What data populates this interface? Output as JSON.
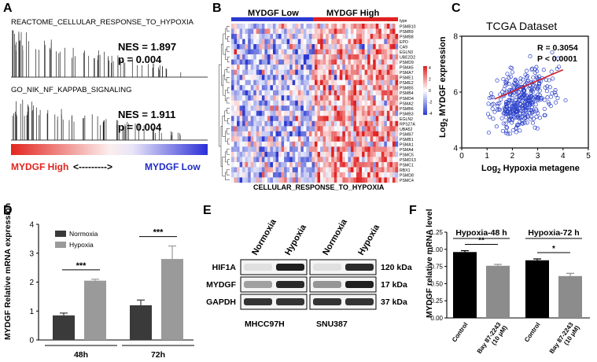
{
  "panels": {
    "A": {
      "label": "A",
      "gsea": [
        {
          "title": "REACTOME_CELLULAR_RESPONSE_TO_HYPOXIA",
          "nes": "NES = 1.897",
          "p": "p = 0.004"
        },
        {
          "title": "GO_NIK_NF_KAPPAB_SIGNALING",
          "nes": "NES = 1.911",
          "p": "p = 0.004"
        }
      ],
      "left_label": "MYDGF High",
      "arrow": "<--------->",
      "right_label": "MYDGF Low",
      "colors": {
        "high": "#e0231d",
        "low": "#1f2cc4"
      }
    },
    "B": {
      "label": "B",
      "group_low": "MYDGF Low",
      "group_high": "MYDGF High",
      "type_label": "type",
      "genes": [
        "PSMB10",
        "PSMB9",
        "PSMB8",
        "EPO",
        "CA9",
        "EGLN3",
        "UBE2D2",
        "PSMD9",
        "PSMA5",
        "PSMA7",
        "PSME1",
        "PSME2",
        "PSMB5",
        "PSMB4",
        "PSMD4",
        "PSMA2",
        "PSMB6",
        "PSMB3",
        "EGLN2",
        "RPS27A",
        "UBA52",
        "PSMB7",
        "PSMB1",
        "PSMA1",
        "PSMA4",
        "PSMC5",
        "PSMD13",
        "PSMC1",
        "RBX1",
        "PSMD8",
        "PSMC4"
      ],
      "scale_ticks": [
        "4",
        "2",
        "0",
        "-2",
        "-4"
      ],
      "xlabel": "CELLULAR_RESPONSE_TO_HYPOXIA"
    },
    "C": {
      "label": "C",
      "chart_data": {
        "type": "scatter",
        "title": "TCGA Dataset",
        "xlabel_main": "Log",
        "xlabel_sub": "2",
        "xlabel_rest": " Hypoxia metagene",
        "ylabel_main": "Log",
        "ylabel_sub": "2",
        "ylabel_rest": " MYDGF expression",
        "xlim": [
          0,
          5
        ],
        "ylim": [
          4,
          8
        ],
        "xticks": [
          "0",
          "1",
          "2",
          "3",
          "4",
          "5"
        ],
        "yticks": [
          "4",
          "6",
          "8"
        ],
        "stats_r": "R = 0.3054",
        "stats_p": "P < 0.0001",
        "fit": {
          "x0": 1.3,
          "y0": 5.75,
          "x1": 4.0,
          "y1": 6.8
        },
        "point_color": "#2a3fc8",
        "line_color": "#d01f2a"
      }
    },
    "D": {
      "label": "D",
      "chart_data": {
        "type": "bar",
        "ylabel": "MYDGF Relative mRNA expression",
        "categories": [
          "48h",
          "72h"
        ],
        "series": [
          {
            "name": "Normoxia",
            "values": [
              0.85,
              1.2
            ],
            "errors": [
              0.08,
              0.18
            ],
            "color": "#3a3a3a"
          },
          {
            "name": "Hypoxia",
            "values": [
              2.05,
              2.8
            ],
            "errors": [
              0.05,
              0.45
            ],
            "color": "#9a9a9a"
          }
        ],
        "ylim": [
          0,
          4
        ],
        "yticks": [
          "0",
          "1",
          "2",
          "3",
          "4"
        ],
        "significance": [
          "***",
          "***"
        ]
      }
    },
    "E": {
      "label": "E",
      "col_labels": [
        "Normoxia",
        "Hypoxia",
        "Normoxia",
        "Hypoxia"
      ],
      "rows": [
        "HIF1A",
        "MYDGF",
        "GAPDH"
      ],
      "sizes": [
        "120 kDa",
        "17 kDa",
        "37 kDa"
      ],
      "cell_lines": [
        "MHCC97H",
        "SNU387"
      ]
    },
    "F": {
      "label": "F",
      "chart_data": {
        "type": "bar",
        "ylabel": "MYDGF relative mRNA level",
        "groups": [
          "Hypoxia-48 h",
          "Hypoxia-72 h"
        ],
        "categories": [
          "Control",
          "Bay 87-2243 (10 μM)",
          "Control",
          "Bay 87-2243 (10 μM)"
        ],
        "cat_line1": [
          "Control",
          "Bay 87-2243",
          "Control",
          "Bay 87-2243"
        ],
        "cat_line2": [
          "",
          "(10 μM)",
          "",
          "(10 μM)"
        ],
        "values": [
          0.96,
          0.76,
          0.84,
          0.61
        ],
        "errors": [
          0.02,
          0.02,
          0.02,
          0.04
        ],
        "colors": [
          "#000000",
          "#8c8c8c",
          "#000000",
          "#8c8c8c"
        ],
        "ylim": [
          0.0,
          1.25
        ],
        "yticks": [
          "0.00",
          "0.25",
          "0.50",
          "0.75",
          "1.00",
          "1.25"
        ],
        "significance": [
          "**",
          "*"
        ]
      }
    }
  }
}
